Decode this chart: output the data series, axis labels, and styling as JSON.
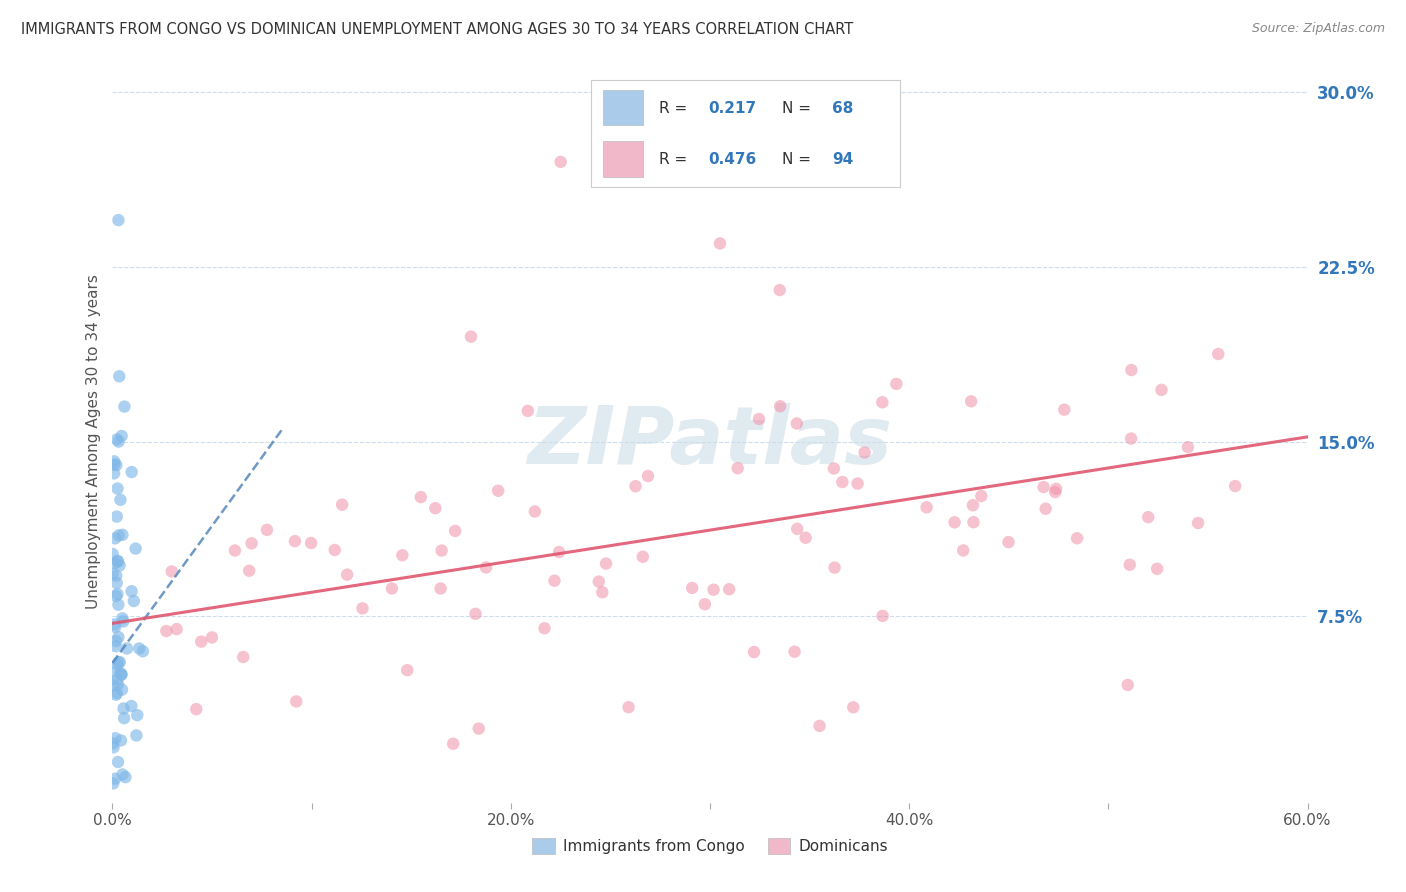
{
  "title": "IMMIGRANTS FROM CONGO VS DOMINICAN UNEMPLOYMENT AMONG AGES 30 TO 34 YEARS CORRELATION CHART",
  "source": "Source: ZipAtlas.com",
  "ylabel": "Unemployment Among Ages 30 to 34 years",
  "legend_labels": [
    "Immigrants from Congo",
    "Dominicans"
  ],
  "congo_R": "0.217",
  "congo_N": "68",
  "dominican_R": "0.476",
  "dominican_N": "94",
  "congo_scatter_color": "#80b8e8",
  "dominican_scatter_color": "#f090a8",
  "congo_line_color": "#5588bb",
  "dominican_line_color": "#e05870",
  "congo_legend_color": "#aaccea",
  "dominican_legend_color": "#f0b8c8",
  "watermark": "ZIPatlas",
  "watermark_color": "#ccdde8",
  "background_color": "#ffffff",
  "grid_color": "#ccddee",
  "title_color": "#333333",
  "source_color": "#888888",
  "right_tick_color": "#3377bb",
  "xlim": [
    0.0,
    0.6
  ],
  "ylim": [
    -0.005,
    0.305
  ],
  "x_ticks": [
    0.0,
    0.1,
    0.2,
    0.3,
    0.4,
    0.5,
    0.6
  ],
  "y_ticks": [
    0.0,
    0.075,
    0.15,
    0.225,
    0.3
  ],
  "x_tick_labels": [
    "0.0%",
    "",
    "20.0%",
    "",
    "40.0%",
    "",
    "60.0%"
  ],
  "y_tick_labels_right": [
    "",
    "7.5%",
    "15.0%",
    "22.5%",
    "30.0%"
  ],
  "congo_line_x0": 0.0,
  "congo_line_x1": 0.085,
  "congo_line_y0": 0.055,
  "congo_line_y1": 0.155,
  "dom_line_x0": 0.0,
  "dom_line_x1": 0.6,
  "dom_line_y0": 0.072,
  "dom_line_y1": 0.152
}
